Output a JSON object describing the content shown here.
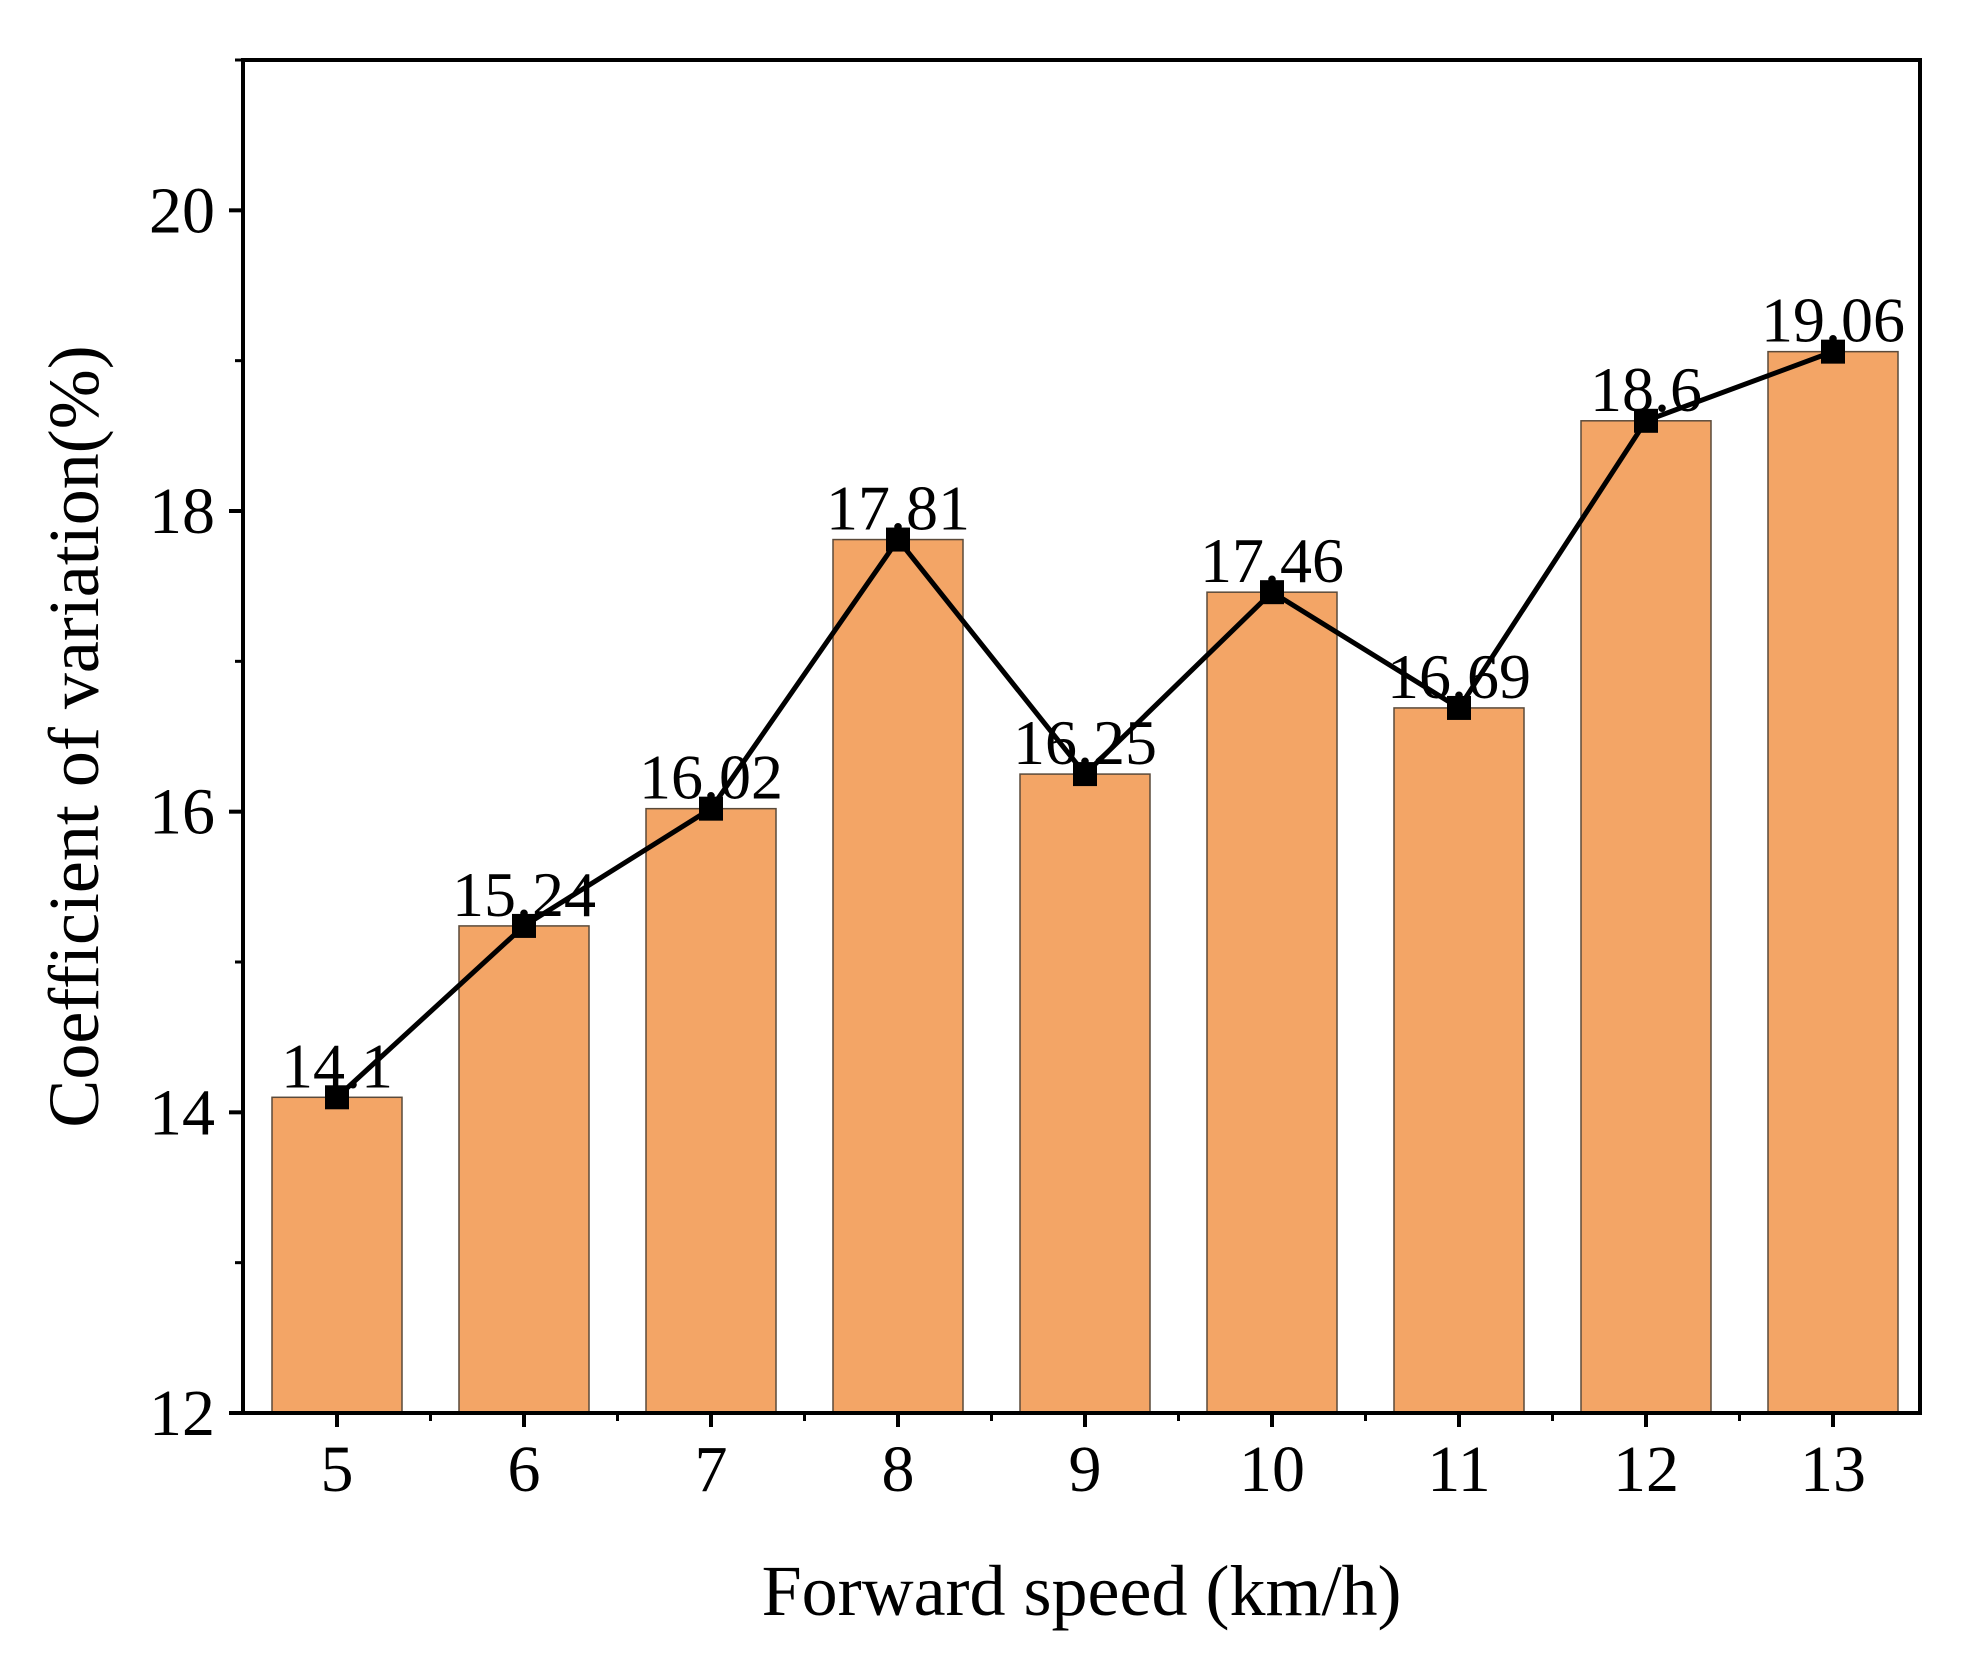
{
  "chart_data": {
    "type": "bar",
    "title": "",
    "xlabel": "Forward speed (km/h)",
    "ylabel": "Coefficient of variation(%)",
    "categories": [
      "5",
      "6",
      "7",
      "8",
      "9",
      "10",
      "11",
      "12",
      "13"
    ],
    "values": [
      14.1,
      15.24,
      16.02,
      17.81,
      16.25,
      17.46,
      16.69,
      18.6,
      19.06
    ],
    "data_labels": [
      "14.1",
      "15.24",
      "16.02",
      "17.81",
      "16.25",
      "17.46",
      "16.69",
      "18.6",
      "19.06"
    ],
    "ylim": [
      12,
      21
    ],
    "yticks": [
      "12",
      "14",
      "16",
      "18",
      "20"
    ],
    "yticks_values": [
      12,
      14,
      16,
      18,
      20
    ],
    "series": [
      {
        "name": "bars",
        "kind": "bar",
        "values": [
          14.1,
          15.24,
          16.02,
          17.81,
          16.25,
          17.46,
          16.69,
          18.6,
          19.06
        ]
      },
      {
        "name": "line",
        "kind": "line-with-square-markers",
        "values": [
          14.1,
          15.24,
          16.02,
          17.81,
          16.25,
          17.46,
          16.69,
          18.6,
          19.06
        ]
      }
    ],
    "grid": false,
    "legend": "none"
  },
  "colors": {
    "bar_fill": "#F3A566",
    "bar_stroke": "#5a4a3a",
    "line": "#000000",
    "marker": "#000000",
    "axis": "#000000"
  }
}
